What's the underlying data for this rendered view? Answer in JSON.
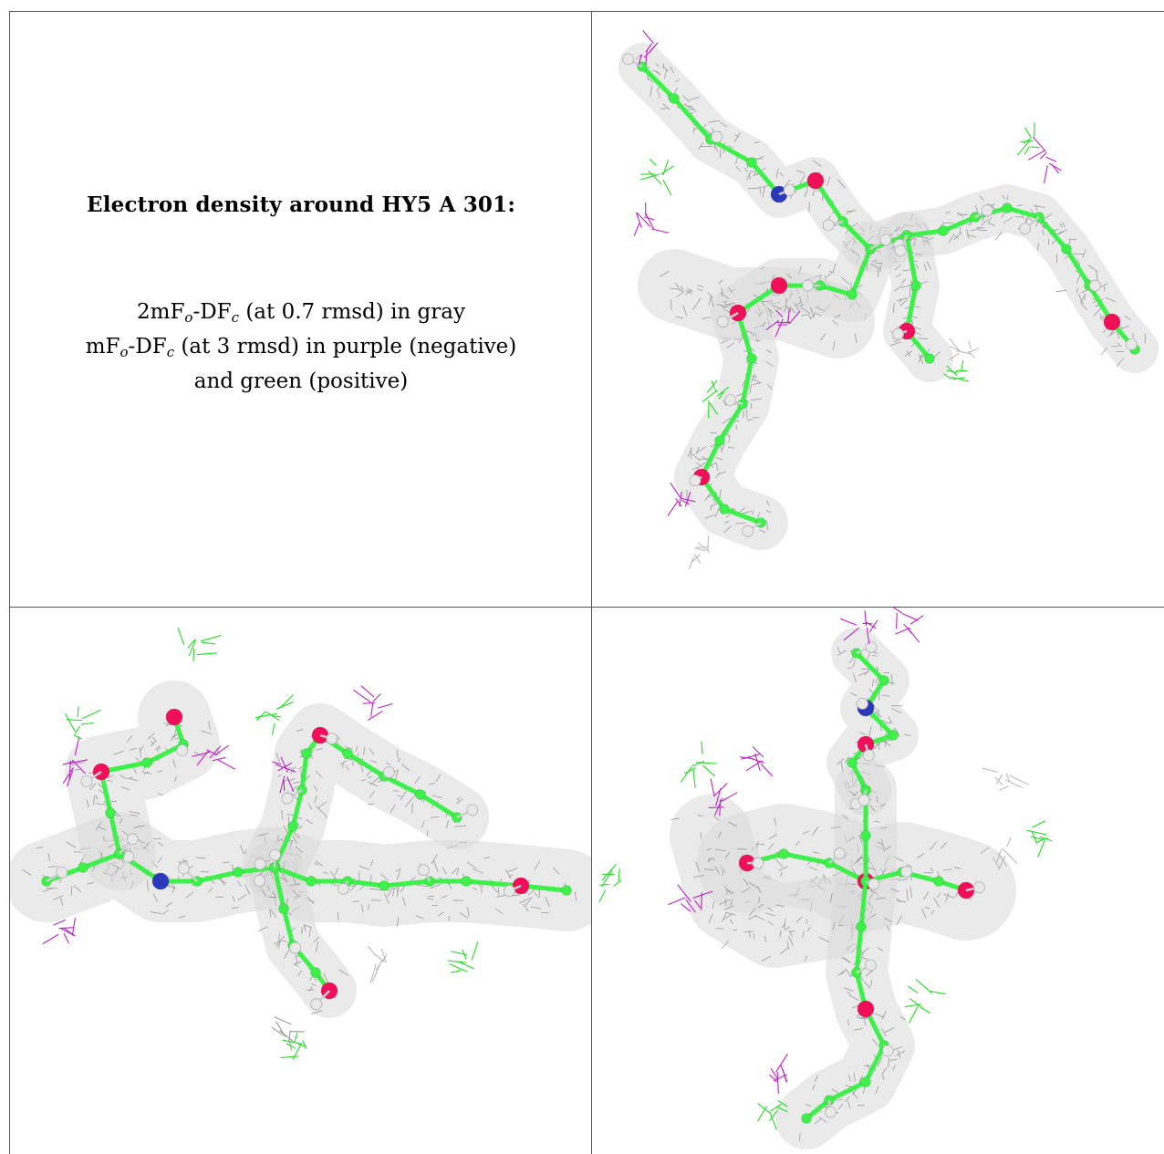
{
  "caption": {
    "title": "Electron density around HY5 A 301:",
    "line1": {
      "prefix": "2mF",
      "sub1": "o",
      "mid": "-DF",
      "sub2": "c",
      "suffix": " (at 0.7 rmsd) in gray"
    },
    "line2": {
      "prefix": "mF",
      "sub1": "o",
      "mid": "-DF",
      "sub2": "c",
      "suffix": " (at 3 rmsd) in purple (negative)"
    },
    "line3": "and green (positive)"
  },
  "colors": {
    "mesh_2fofc": "#9a9a9a",
    "mesh_negative": "#c020c8",
    "mesh_positive": "#22dd22",
    "carbon": "#3ef04a",
    "oxygen": "#f0105a",
    "nitrogen": "#2a3ab8",
    "hydrogen": "#e8e8e8"
  },
  "views": [
    {
      "label": "view-1"
    },
    {
      "label": "view-2"
    },
    {
      "label": "view-3"
    }
  ]
}
